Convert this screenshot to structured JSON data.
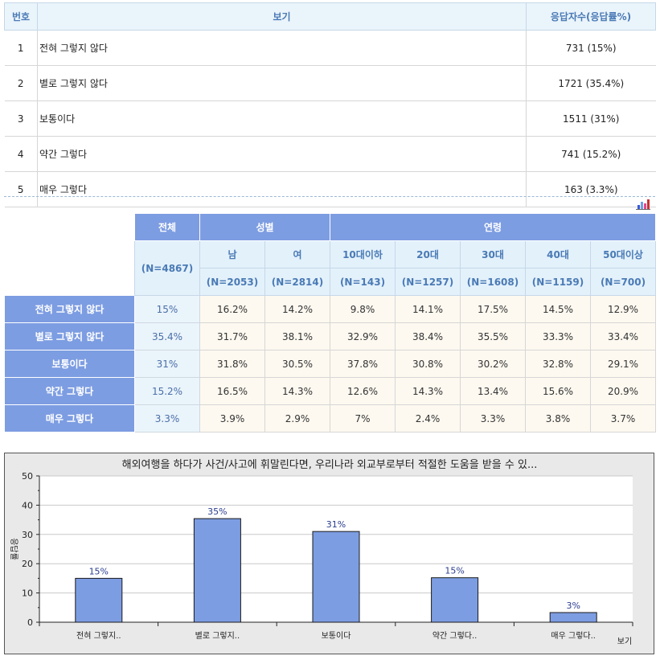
{
  "response_table": {
    "headers": {
      "no": "번호",
      "option": "보기",
      "count": "응답자수(응답률%)"
    },
    "rows": [
      {
        "no": "1",
        "option": "전혀 그렇지 않다",
        "count": "731 (15%)"
      },
      {
        "no": "2",
        "option": "별로 그렇지 않다",
        "count": "1721 (35.4%)"
      },
      {
        "no": "3",
        "option": "보통이다",
        "count": "1511 (31%)"
      },
      {
        "no": "4",
        "option": "약간 그렇다",
        "count": "741 (15.2%)"
      },
      {
        "no": "5",
        "option": "매우 그렇다",
        "count": "163 (3.3%)"
      }
    ]
  },
  "chart_toggle_icon": "bar-chart-icon",
  "crosstab": {
    "total_label": "전체",
    "total_n": "(N=4867)",
    "group_gender": "성별",
    "group_age": "연령",
    "columns": [
      {
        "label": "남",
        "n": "(N=2053)"
      },
      {
        "label": "여",
        "n": "(N=2814)"
      },
      {
        "label": "10대이하",
        "n": "(N=143)"
      },
      {
        "label": "20대",
        "n": "(N=1257)"
      },
      {
        "label": "30대",
        "n": "(N=1608)"
      },
      {
        "label": "40대",
        "n": "(N=1159)"
      },
      {
        "label": "50대이상",
        "n": "(N=700)"
      }
    ],
    "rows": [
      {
        "label": "전혀 그렇지 않다",
        "total": "15%",
        "values": [
          "16.2%",
          "14.2%",
          "9.8%",
          "14.1%",
          "17.5%",
          "14.5%",
          "12.9%"
        ]
      },
      {
        "label": "별로 그렇지 않다",
        "total": "35.4%",
        "values": [
          "31.7%",
          "38.1%",
          "32.9%",
          "38.4%",
          "35.5%",
          "33.3%",
          "33.4%"
        ]
      },
      {
        "label": "보통이다",
        "total": "31%",
        "values": [
          "31.8%",
          "30.5%",
          "37.8%",
          "30.8%",
          "30.2%",
          "32.8%",
          "29.1%"
        ]
      },
      {
        "label": "약간 그렇다",
        "total": "15.2%",
        "values": [
          "16.5%",
          "14.3%",
          "12.6%",
          "14.3%",
          "13.4%",
          "15.6%",
          "20.9%"
        ]
      },
      {
        "label": "매우 그렇다",
        "total": "3.3%",
        "values": [
          "3.9%",
          "2.9%",
          "7%",
          "2.4%",
          "3.3%",
          "3.8%",
          "3.7%"
        ]
      }
    ]
  },
  "chart_data": {
    "type": "bar",
    "title": "해외여행을 하다가 사건/사고에 휘말린다면, 우리나라 외교부로부터 적절한 도움을 받을 수 있...",
    "xlabel": "보기",
    "ylabel": "응답률",
    "categories": [
      "전혀 그렇지..",
      "별로 그렇지..",
      "보통이다",
      "약간 그렇다..",
      "매우 그렇다.."
    ],
    "values": [
      15,
      35.4,
      31,
      15.2,
      3.3
    ],
    "data_labels": [
      "15%",
      "35%",
      "31%",
      "15%",
      "3%"
    ],
    "yticks": [
      "0",
      "10",
      "20",
      "30",
      "40",
      "50"
    ],
    "ylim": [
      0,
      50
    ],
    "grid": true,
    "colors": {
      "bar": "#7d9de2",
      "bar_border": "#1a1a1a",
      "label": "#2a3d8f",
      "plot_bg": "#ffffff",
      "frame_bg": "#e9e9e9"
    }
  }
}
